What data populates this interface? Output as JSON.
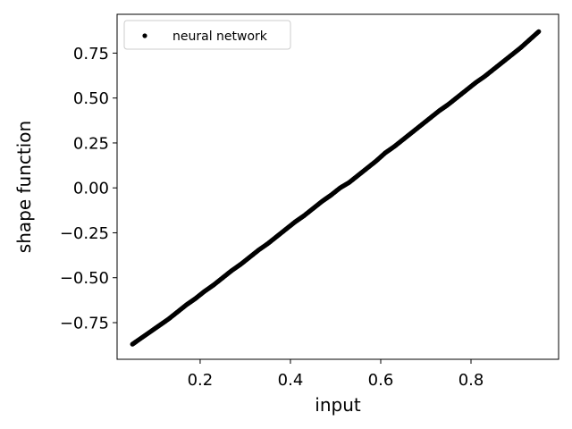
{
  "chart_data": {
    "type": "scatter",
    "title": "",
    "xlabel": "input",
    "ylabel": "shape function",
    "xlim": [
      0.016,
      0.994
    ],
    "ylim": [
      -0.954,
      0.966
    ],
    "x_ticks": [
      0.2,
      0.4,
      0.6,
      0.8
    ],
    "x_tick_labels": [
      "0.2",
      "0.4",
      "0.6",
      "0.8"
    ],
    "y_ticks": [
      -0.75,
      -0.5,
      -0.25,
      0.0,
      0.25,
      0.5,
      0.75
    ],
    "y_tick_labels": [
      "−0.75",
      "−0.50",
      "−0.25",
      "0.00",
      "0.25",
      "0.50",
      "0.75"
    ],
    "grid": false,
    "legend_position": "top-left",
    "series": [
      {
        "name": "neural network",
        "color": "#000000",
        "marker": "circle",
        "x": [
          0.05,
          0.07,
          0.09,
          0.11,
          0.13,
          0.15,
          0.17,
          0.19,
          0.21,
          0.23,
          0.25,
          0.27,
          0.29,
          0.31,
          0.33,
          0.35,
          0.37,
          0.39,
          0.41,
          0.43,
          0.45,
          0.47,
          0.49,
          0.51,
          0.53,
          0.55,
          0.57,
          0.59,
          0.61,
          0.63,
          0.65,
          0.67,
          0.69,
          0.71,
          0.73,
          0.75,
          0.77,
          0.79,
          0.81,
          0.83,
          0.85,
          0.87,
          0.89,
          0.91,
          0.93,
          0.95
        ],
        "y": [
          -0.87,
          -0.835,
          -0.8,
          -0.765,
          -0.73,
          -0.69,
          -0.65,
          -0.615,
          -0.575,
          -0.54,
          -0.5,
          -0.46,
          -0.425,
          -0.385,
          -0.345,
          -0.31,
          -0.27,
          -0.23,
          -0.19,
          -0.155,
          -0.115,
          -0.075,
          -0.04,
          0.0,
          0.03,
          0.07,
          0.11,
          0.15,
          0.195,
          0.23,
          0.27,
          0.31,
          0.35,
          0.39,
          0.43,
          0.465,
          0.505,
          0.545,
          0.585,
          0.62,
          0.66,
          0.7,
          0.74,
          0.78,
          0.825,
          0.87
        ]
      }
    ]
  }
}
